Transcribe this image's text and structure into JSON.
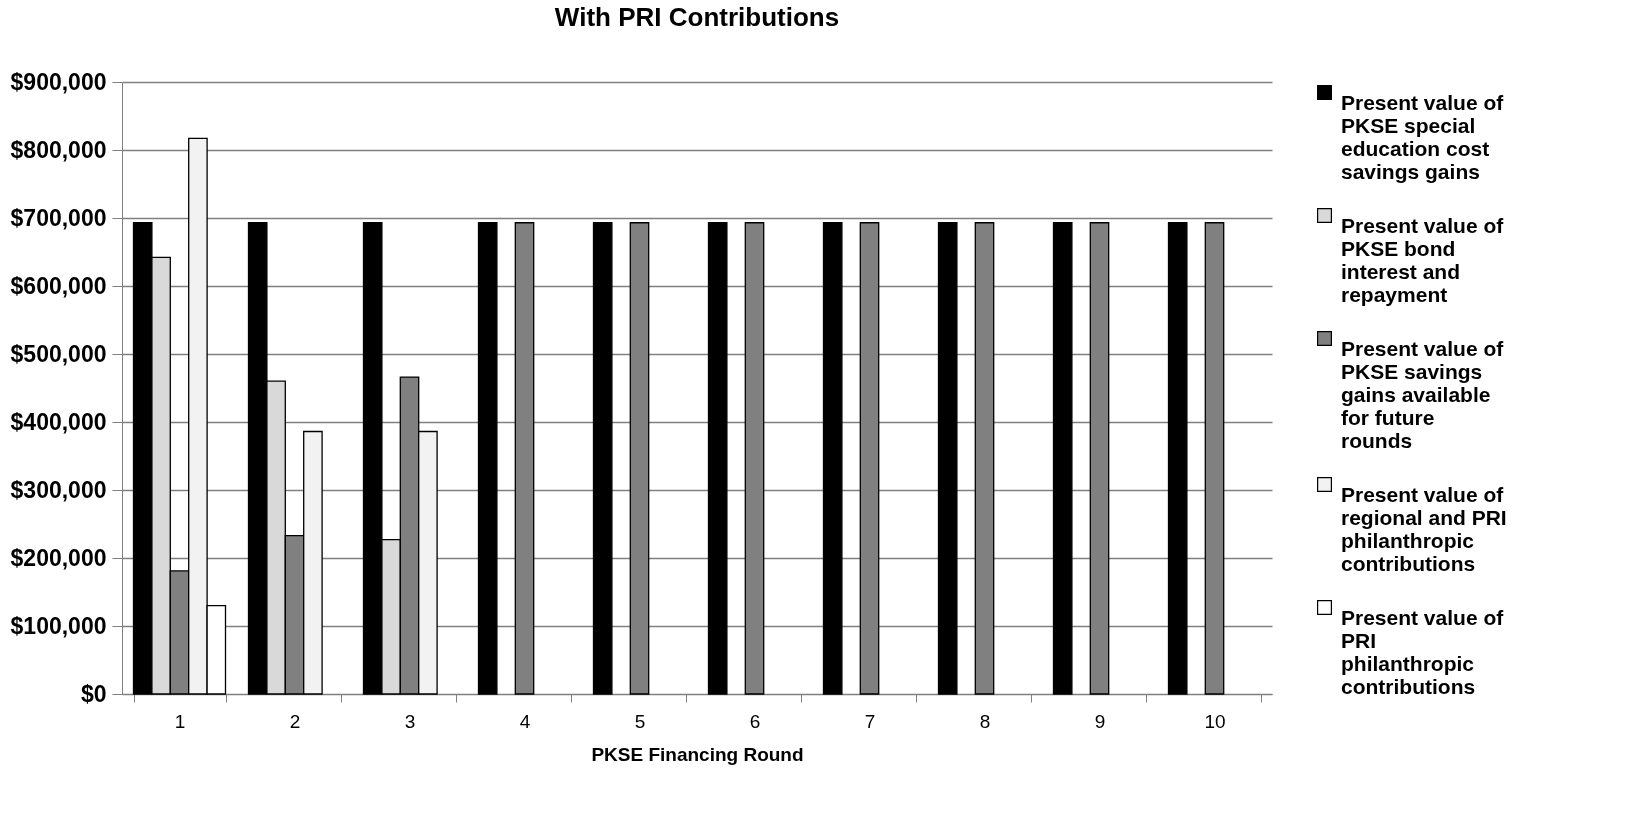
{
  "chart_data": {
    "type": "bar",
    "title": "With PRI Contributions",
    "xlabel": "PKSE Financing Round",
    "categories": [
      "1",
      "2",
      "3",
      "4",
      "5",
      "6",
      "7",
      "8",
      "9",
      "10"
    ],
    "series": [
      {
        "name": "Present value of PKSE special education cost savings gains",
        "color": "#000000",
        "values": [
          693000,
          693000,
          693000,
          693000,
          693000,
          693000,
          693000,
          693000,
          693000,
          693000
        ]
      },
      {
        "name": "Present value of PKSE bond interest and repayment",
        "color": "#d9d9d9",
        "values": [
          642000,
          460000,
          227000,
          null,
          null,
          null,
          null,
          null,
          null,
          null
        ]
      },
      {
        "name": "Present value of PKSE savings gains available for future rounds",
        "color": "#808080",
        "values": [
          181000,
          233000,
          466000,
          693000,
          693000,
          693000,
          693000,
          693000,
          693000,
          693000
        ]
      },
      {
        "name": "Present value of regional and PRI philanthropic contributions",
        "color": "#f2f2f2",
        "values": [
          817000,
          386000,
          386000,
          null,
          null,
          null,
          null,
          null,
          null,
          null
        ]
      },
      {
        "name": "Present value of PRI philanthropic contributions",
        "color": "#ffffff",
        "values": [
          130000,
          null,
          null,
          null,
          null,
          null,
          null,
          null,
          null,
          null
        ]
      }
    ],
    "ylim": [
      0,
      900000
    ],
    "yticks": [
      {
        "value": 0,
        "label": "$0"
      },
      {
        "value": 100000,
        "label": "$100,000"
      },
      {
        "value": 200000,
        "label": "$200,000"
      },
      {
        "value": 300000,
        "label": "$300,000"
      },
      {
        "value": 400000,
        "label": "$400,000"
      },
      {
        "value": 500000,
        "label": "$500,000"
      },
      {
        "value": 600000,
        "label": "$600,000"
      },
      {
        "value": 700000,
        "label": "$700,000"
      },
      {
        "value": 800000,
        "label": "$800,000"
      },
      {
        "value": 900000,
        "label": "$900,000"
      }
    ],
    "grid": "y",
    "legend": "right"
  }
}
